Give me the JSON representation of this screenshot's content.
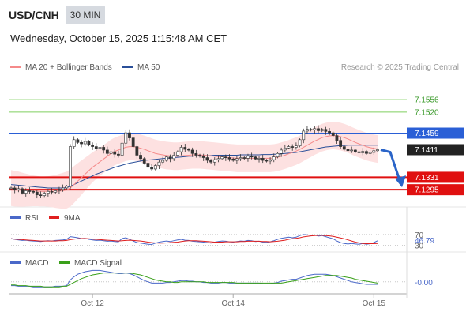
{
  "header": {
    "symbol": "USD/CNH",
    "timeframe": "30 MIN",
    "datetime": "Wednesday, October 15, 2025 1:15:48 AM CET"
  },
  "legend": {
    "ma20": {
      "label": "MA 20 + Bollinger Bands",
      "color": "#f58a8a"
    },
    "ma50": {
      "label": "MA 50",
      "color": "#2a4f99"
    },
    "copyright": "Research © 2025 Trading Central"
  },
  "rsi_legend": {
    "rsi": "RSI",
    "ma": "9MA",
    "rsi_color": "#4a68c9",
    "ma_color": "#e02020"
  },
  "macd_legend": {
    "macd": "MACD",
    "signal": "MACD Signal",
    "macd_color": "#4a68c9",
    "signal_color": "#3aa01a"
  },
  "chart_data": {
    "type": "candlestick",
    "x_ticks": [
      "Oct 12",
      "Oct 14",
      "Oct 15"
    ],
    "ylim": [
      7.1245,
      7.1625
    ],
    "levels": [
      {
        "label": "7.1556",
        "value": 7.1556,
        "kind": "target",
        "color": "#7fcf5f"
      },
      {
        "label": "7.1520",
        "value": 7.152,
        "kind": "target",
        "color": "#7fcf5f"
      },
      {
        "label": "7.1459",
        "value": 7.1459,
        "kind": "pivot",
        "color": "#2a5fd6"
      },
      {
        "label": "7.1411",
        "value": 7.1411,
        "kind": "last",
        "color": "#222222"
      },
      {
        "label": "7.1331",
        "value": 7.1331,
        "kind": "support",
        "color": "#e01010"
      },
      {
        "label": "7.1295",
        "value": 7.1295,
        "kind": "support",
        "color": "#e01010"
      }
    ],
    "close": [
      7.13,
      7.1295,
      7.1298,
      7.1285,
      7.1292,
      7.129,
      7.1288,
      7.128,
      7.1278,
      7.1285,
      7.129,
      7.1288,
      7.1292,
      7.1296,
      7.13,
      7.1305,
      7.142,
      7.144,
      7.1432,
      7.1428,
      7.1435,
      7.1425,
      7.142,
      7.1415,
      7.1418,
      7.141,
      7.14,
      7.1405,
      7.1398,
      7.1395,
      7.143,
      7.146,
      7.1445,
      7.142,
      7.1395,
      7.1385,
      7.1372,
      7.136,
      7.1355,
      7.1365,
      7.1375,
      7.138,
      7.139,
      7.1385,
      7.1395,
      7.1405,
      7.1418,
      7.1412,
      7.141,
      7.14,
      7.1395,
      7.1392,
      7.1388,
      7.138,
      7.1375,
      7.1382,
      7.1385,
      7.139,
      7.1388,
      7.1384,
      7.138,
      7.1385,
      7.1388,
      7.1386,
      7.1392,
      7.139,
      7.1384,
      7.1386,
      7.138,
      7.1378,
      7.1382,
      7.139,
      7.14,
      7.141,
      7.1416,
      7.142,
      7.1418,
      7.1422,
      7.144,
      7.1465,
      7.147,
      7.1468,
      7.1472,
      7.1466,
      7.147,
      7.1464,
      7.146,
      7.1452,
      7.1438,
      7.142,
      7.1412,
      7.1408,
      7.141,
      7.1405,
      7.1402,
      7.1406,
      7.14,
      7.1403,
      7.1408,
      7.1411
    ],
    "ma20": [
      7.13,
      7.1298,
      7.1297,
      7.1295,
      7.1294,
      7.1293,
      7.1292,
      7.1291,
      7.129,
      7.129,
      7.129,
      7.129,
      7.129,
      7.1291,
      7.1292,
      7.1294,
      7.13,
      7.131,
      7.132,
      7.133,
      7.134,
      7.135,
      7.136,
      7.1368,
      7.1376,
      7.1384,
      7.1392,
      7.14,
      7.1406,
      7.141,
      7.1414,
      7.1418,
      7.142,
      7.142,
      7.1418,
      7.1415,
      7.1412,
      7.1408,
      7.1404,
      7.14,
      7.1398,
      7.1396,
      7.1394,
      7.1393,
      7.1392,
      7.1392,
      7.1393,
      7.1394,
      7.1395,
      7.1396,
      7.1396,
      7.1396,
      7.1395,
      7.1394,
      7.1393,
      7.1392,
      7.1391,
      7.139,
      7.1389,
      7.1388,
      7.1387,
      7.1386,
      7.1386,
      7.1386,
      7.1386,
      7.1386,
      7.1386,
      7.1386,
      7.1386,
      7.1386,
      7.1386,
      7.1387,
      7.1389,
      7.1392,
      7.1395,
      7.1399,
      7.1403,
      7.1407,
      7.1412,
      7.1418,
      7.1424,
      7.143,
      7.1436,
      7.1441,
      7.1446,
      7.1449,
      7.1451,
      7.1452,
      7.1451,
      7.1449,
      7.1446,
      7.1442,
      7.1437,
      7.1432,
      7.1428,
      7.1424,
      7.142,
      7.1417,
      7.1415,
      7.1413
    ],
    "ma50": [
      7.131,
      7.1309,
      7.1308,
      7.1307,
      7.1306,
      7.1305,
      7.1304,
      7.1303,
      7.1302,
      7.1301,
      7.13,
      7.13,
      7.13,
      7.13,
      7.13,
      7.1301,
      7.1305,
      7.131,
      7.1315,
      7.132,
      7.1325,
      7.133,
      7.1335,
      7.134,
      7.1344,
      7.1348,
      7.1352,
      7.1356,
      7.136,
      7.1363,
      7.1366,
      7.1369,
      7.1372,
      7.1374,
      7.1376,
      7.1378,
      7.138,
      7.1381,
      7.1382,
      7.1383,
      7.1384,
      7.1385,
      7.1386,
      7.1387,
      7.1388,
      7.1389,
      7.139,
      7.1391,
      7.1392,
      7.1392,
      7.1393,
      7.1393,
      7.1394,
      7.1394,
      7.1394,
      7.1395,
      7.1395,
      7.1395,
      7.1395,
      7.1395,
      7.1395,
      7.1395,
      7.1396,
      7.1396,
      7.1396,
      7.1396,
      7.1396,
      7.1396,
      7.1397,
      7.1397,
      7.1397,
      7.1398,
      7.1398,
      7.1399,
      7.14,
      7.1401,
      7.1402,
      7.1403,
      7.1405,
      7.1407,
      7.1409,
      7.1411,
      7.1413,
      7.1415,
      7.1417,
      7.1419,
      7.142,
      7.1421,
      7.1422,
      7.1423,
      7.1423,
      7.1424,
      7.1424,
      7.1424,
      7.1424,
      7.1424,
      7.1424,
      7.1424,
      7.1424,
      7.1424
    ],
    "bb_width": 0.004,
    "rsi": {
      "ticks": [
        "70",
        "30"
      ],
      "last_label": "46.79",
      "last_value": 46.79,
      "values": [
        55,
        52,
        50,
        48,
        49,
        47,
        46,
        45,
        44,
        46,
        47,
        46,
        48,
        49,
        50,
        52,
        62,
        60,
        58,
        55,
        56,
        52,
        50,
        48,
        49,
        47,
        45,
        46,
        44,
        43,
        55,
        58,
        52,
        46,
        40,
        38,
        36,
        34,
        33,
        38,
        42,
        44,
        46,
        44,
        47,
        50,
        52,
        49,
        48,
        45,
        44,
        43,
        42,
        40,
        38,
        42,
        44,
        46,
        45,
        43,
        42,
        44,
        46,
        45,
        48,
        47,
        44,
        45,
        42,
        41,
        43,
        47,
        52,
        56,
        58,
        60,
        58,
        60,
        66,
        70,
        69,
        67,
        68,
        64,
        66,
        62,
        58,
        54,
        46,
        40,
        37,
        35,
        37,
        35,
        34,
        37,
        34,
        36,
        40,
        46.79
      ],
      "ma": [
        54,
        53,
        52,
        51,
        50,
        49,
        48,
        47,
        46,
        46,
        46,
        46,
        46,
        47,
        47,
        48,
        51,
        53,
        54,
        55,
        55,
        54,
        53,
        52,
        51,
        50,
        49,
        48,
        47,
        46,
        47,
        48,
        49,
        48,
        47,
        46,
        44,
        42,
        40,
        39,
        38,
        38,
        39,
        40,
        41,
        42,
        44,
        46,
        47,
        47,
        47,
        46,
        45,
        44,
        43,
        42,
        42,
        42,
        43,
        43,
        43,
        43,
        44,
        44,
        45,
        45,
        45,
        45,
        44,
        44,
        43,
        44,
        45,
        47,
        49,
        52,
        54,
        56,
        58,
        61,
        63,
        65,
        66,
        67,
        67,
        66,
        65,
        63,
        60,
        57,
        54,
        50,
        46,
        42,
        39,
        37,
        36,
        36,
        36,
        37
      ]
    },
    "macd": {
      "last_label": "-0.00",
      "values": [
        -0.0006,
        -0.0006,
        -0.0007,
        -0.0007,
        -0.0007,
        -0.0007,
        -0.0008,
        -0.0008,
        -0.0008,
        -0.0008,
        -0.0008,
        -0.0008,
        -0.0007,
        -0.0007,
        -0.0007,
        -0.0006,
        0.0003,
        0.0008,
        0.0012,
        0.0014,
        0.0016,
        0.0017,
        0.0018,
        0.0018,
        0.0018,
        0.0017,
        0.0016,
        0.0015,
        0.0014,
        0.0013,
        0.0013,
        0.0014,
        0.0013,
        0.0011,
        0.0008,
        0.0005,
        0.0002,
        0.0,
        -0.0002,
        -0.0002,
        -0.0002,
        -0.0002,
        -0.0001,
        -0.0001,
        0.0,
        0.0001,
        0.0002,
        0.0002,
        0.0001,
        0.0001,
        0.0,
        0.0,
        -0.0001,
        -0.0001,
        -0.0002,
        -0.0002,
        -0.0002,
        -0.0001,
        -0.0001,
        -0.0002,
        -0.0002,
        -0.0002,
        -0.0002,
        -0.0002,
        -0.0002,
        -0.0002,
        -0.0002,
        -0.0002,
        -0.0003,
        -0.0003,
        -0.0003,
        -0.0002,
        -0.0001,
        0.0001,
        0.0002,
        0.0003,
        0.0004,
        0.0004,
        0.0006,
        0.0008,
        0.001,
        0.0011,
        0.0012,
        0.0012,
        0.0012,
        0.0012,
        0.0011,
        0.001,
        0.0008,
        0.0006,
        0.0004,
        0.0002,
        0.0,
        -0.0001,
        -0.0002,
        -0.0003,
        -0.0004,
        -0.0004,
        -0.0004,
        -0.0004
      ],
      "signal": [
        -0.0005,
        -0.0005,
        -0.0006,
        -0.0006,
        -0.0006,
        -0.0007,
        -0.0007,
        -0.0007,
        -0.0007,
        -0.0008,
        -0.0008,
        -0.0008,
        -0.0008,
        -0.0008,
        -0.0007,
        -0.0007,
        -0.0004,
        -0.0001,
        0.0002,
        0.0005,
        0.0007,
        0.0009,
        0.0011,
        0.0012,
        0.0013,
        0.0014,
        0.0014,
        0.0014,
        0.0014,
        0.0014,
        0.0014,
        0.0014,
        0.0014,
        0.0013,
        0.0012,
        0.0011,
        0.0009,
        0.0007,
        0.0005,
        0.0003,
        0.0002,
        0.0001,
        0.0,
        0.0,
        -0.0001,
        -0.0001,
        0.0,
        0.0,
        0.0,
        0.0,
        0.0,
        0.0,
        0.0,
        -0.0001,
        -0.0001,
        -0.0001,
        -0.0001,
        -0.0001,
        -0.0001,
        -0.0001,
        -0.0001,
        -0.0002,
        -0.0002,
        -0.0002,
        -0.0002,
        -0.0002,
        -0.0002,
        -0.0002,
        -0.0002,
        -0.0002,
        -0.0002,
        -0.0002,
        -0.0002,
        -0.0002,
        -0.0001,
        0.0,
        0.0001,
        0.0002,
        0.0003,
        0.0004,
        0.0005,
        0.0006,
        0.0007,
        0.0008,
        0.0009,
        0.001,
        0.001,
        0.001,
        0.001,
        0.0009,
        0.0008,
        0.0007,
        0.0006,
        0.0004,
        0.0003,
        0.0002,
        0.0001,
        0.0,
        -0.0001,
        -0.0002
      ]
    }
  }
}
